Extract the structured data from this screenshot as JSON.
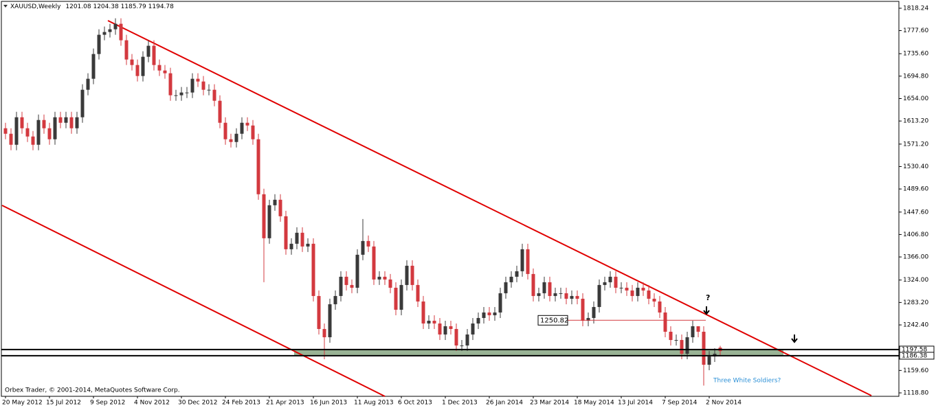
{
  "chart_data": {
    "type": "candlestick",
    "symbol": "XAUUSD,Weekly",
    "footer": "Orbex Trader, © 2001-2014, MetaQuotes Software Corp.",
    "annotations": [
      "?",
      "Three White Soldiers?"
    ],
    "categories": [
      "20 May 2012",
      null,
      null,
      null,
      null,
      null,
      null,
      null,
      "15 Jul 2012",
      null,
      null,
      null,
      null,
      null,
      null,
      null,
      "9 Sep 2012",
      null,
      null,
      null,
      null,
      null,
      null,
      null,
      "4 Nov 2012",
      null,
      null,
      null,
      null,
      null,
      null,
      null,
      "30 Dec 2012",
      null,
      null,
      null,
      null,
      null,
      null,
      null,
      "24 Feb 2013",
      null,
      null,
      null,
      null,
      null,
      null,
      null,
      "21 Apr 2013",
      null,
      null,
      null,
      null,
      null,
      null,
      null,
      "16 Jun 2013",
      null,
      null,
      null,
      null,
      null,
      null,
      null,
      "11 Aug 2013",
      null,
      null,
      null,
      null,
      null,
      null,
      null,
      "6 Oct 2013",
      null,
      null,
      null,
      null,
      null,
      null,
      null,
      "1 Dec 2013",
      null,
      null,
      null,
      null,
      null,
      null,
      null,
      "26 Jan 2014",
      null,
      null,
      null,
      null,
      null,
      null,
      null,
      "23 Mar 2014",
      null,
      null,
      null,
      null,
      null,
      null,
      null,
      "18 May 2014",
      null,
      null,
      null,
      null,
      null,
      null,
      null,
      "13 Jul 2014",
      null,
      null,
      null,
      null,
      null,
      null,
      null,
      "7 Sep 2014",
      null,
      null,
      null,
      null,
      null,
      null,
      null,
      "2 Nov 2014",
      null,
      null
    ],
    "open": [
      1600,
      1590,
      1570,
      1620,
      1600,
      1585,
      1570,
      1615,
      1600,
      1580,
      1620,
      1610,
      1620,
      1600,
      1620,
      1670,
      1690,
      1735,
      1770,
      1775,
      1780,
      1790,
      1760,
      1725,
      1715,
      1695,
      1730,
      1750,
      1715,
      1705,
      1700,
      1660,
      1660,
      1665,
      1665,
      1690,
      1685,
      1670,
      1670,
      1650,
      1610,
      1580,
      1575,
      1590,
      1610,
      1605,
      1580,
      1480,
      1400,
      1460,
      1470,
      1440,
      1380,
      1390,
      1410,
      1385,
      1390,
      1295,
      1235,
      1220,
      1280,
      1295,
      1330,
      1315,
      1310,
      1370,
      1395,
      1385,
      1325,
      1330,
      1325,
      1310,
      1270,
      1315,
      1350,
      1315,
      1285,
      1245,
      1250,
      1245,
      1225,
      1240,
      1235,
      1205,
      1205,
      1225,
      1245,
      1255,
      1265,
      1260,
      1265,
      1300,
      1320,
      1330,
      1340,
      1380,
      1335,
      1295,
      1300,
      1320,
      1295,
      1300,
      1300,
      1290,
      1295,
      1290,
      1250,
      1255,
      1275,
      1315,
      1320,
      1330,
      1310,
      1310,
      1305,
      1295,
      1310,
      1305,
      1290,
      1285,
      1265,
      1230,
      1215,
      1215,
      1190,
      1220,
      1240,
      1230,
      1170,
      1185,
      1201.08
    ],
    "high": [
      1610,
      1600,
      1630,
      1630,
      1610,
      1595,
      1625,
      1625,
      1610,
      1630,
      1630,
      1630,
      1630,
      1630,
      1680,
      1700,
      1745,
      1780,
      1785,
      1790,
      1800,
      1800,
      1770,
      1735,
      1725,
      1740,
      1760,
      1760,
      1725,
      1715,
      1710,
      1670,
      1675,
      1675,
      1700,
      1700,
      1695,
      1680,
      1680,
      1660,
      1620,
      1590,
      1600,
      1620,
      1620,
      1615,
      1590,
      1490,
      1470,
      1480,
      1480,
      1450,
      1400,
      1420,
      1420,
      1400,
      1400,
      1305,
      1245,
      1290,
      1305,
      1340,
      1340,
      1325,
      1380,
      1435,
      1405,
      1395,
      1340,
      1340,
      1335,
      1320,
      1325,
      1360,
      1360,
      1325,
      1295,
      1260,
      1260,
      1255,
      1250,
      1250,
      1245,
      1215,
      1235,
      1255,
      1265,
      1275,
      1275,
      1275,
      1310,
      1330,
      1340,
      1350,
      1390,
      1390,
      1345,
      1310,
      1330,
      1330,
      1310,
      1310,
      1310,
      1305,
      1305,
      1300,
      1265,
      1285,
      1325,
      1330,
      1340,
      1340,
      1320,
      1320,
      1315,
      1320,
      1320,
      1315,
      1300,
      1295,
      1275,
      1240,
      1225,
      1225,
      1230,
      1250,
      1240,
      1240,
      1195,
      1200,
      1204.38
    ],
    "low": [
      1580,
      1560,
      1560,
      1590,
      1575,
      1560,
      1560,
      1590,
      1570,
      1570,
      1600,
      1600,
      1590,
      1590,
      1610,
      1660,
      1680,
      1725,
      1760,
      1765,
      1770,
      1750,
      1715,
      1705,
      1685,
      1685,
      1720,
      1705,
      1695,
      1690,
      1650,
      1650,
      1650,
      1655,
      1655,
      1675,
      1660,
      1660,
      1640,
      1600,
      1570,
      1565,
      1565,
      1580,
      1595,
      1570,
      1470,
      1320,
      1390,
      1450,
      1430,
      1370,
      1370,
      1380,
      1375,
      1375,
      1285,
      1225,
      1180,
      1210,
      1270,
      1285,
      1305,
      1300,
      1300,
      1360,
      1375,
      1315,
      1315,
      1315,
      1300,
      1260,
      1260,
      1305,
      1305,
      1275,
      1235,
      1235,
      1235,
      1215,
      1215,
      1225,
      1195,
      1195,
      1195,
      1215,
      1235,
      1245,
      1250,
      1250,
      1255,
      1290,
      1310,
      1320,
      1330,
      1325,
      1285,
      1285,
      1290,
      1285,
      1285,
      1290,
      1280,
      1280,
      1280,
      1240,
      1240,
      1245,
      1265,
      1305,
      1310,
      1300,
      1300,
      1295,
      1285,
      1285,
      1295,
      1280,
      1275,
      1255,
      1220,
      1205,
      1205,
      1180,
      1180,
      1210,
      1220,
      1132,
      1160,
      1175,
      1185.79
    ],
    "close": [
      1590,
      1570,
      1620,
      1600,
      1585,
      1570,
      1615,
      1600,
      1580,
      1620,
      1610,
      1620,
      1600,
      1620,
      1670,
      1690,
      1735,
      1770,
      1775,
      1780,
      1790,
      1760,
      1725,
      1715,
      1695,
      1730,
      1750,
      1715,
      1705,
      1700,
      1660,
      1660,
      1665,
      1665,
      1690,
      1685,
      1670,
      1670,
      1650,
      1610,
      1580,
      1575,
      1590,
      1610,
      1605,
      1580,
      1480,
      1400,
      1460,
      1470,
      1440,
      1380,
      1390,
      1410,
      1385,
      1390,
      1295,
      1235,
      1220,
      1280,
      1295,
      1330,
      1315,
      1310,
      1370,
      1395,
      1385,
      1325,
      1330,
      1325,
      1310,
      1270,
      1315,
      1350,
      1315,
      1285,
      1245,
      1250,
      1245,
      1225,
      1240,
      1235,
      1205,
      1205,
      1225,
      1245,
      1255,
      1265,
      1260,
      1265,
      1300,
      1320,
      1330,
      1340,
      1380,
      1335,
      1295,
      1300,
      1320,
      1295,
      1300,
      1300,
      1290,
      1295,
      1290,
      1250,
      1255,
      1275,
      1315,
      1320,
      1330,
      1310,
      1310,
      1305,
      1295,
      1310,
      1305,
      1290,
      1285,
      1265,
      1230,
      1215,
      1215,
      1190,
      1220,
      1240,
      1230,
      1170,
      1185,
      1190,
      1194.78
    ],
    "bull_color": "#3a3a3a",
    "bear_color": "#d3393f",
    "hlines": [
      1197.58,
      1186.38
    ],
    "level": 1250.82,
    "ylim": [
      1112.56,
      1830.73
    ],
    "yticks": [
      1818.24,
      {
        "value": 1777.6,
        "label": "1777.60"
      },
      {
        "value": 1735.6,
        "label": "1735.60"
      },
      {
        "value": 1694.8,
        "label": "1694.80"
      },
      {
        "value": 1654,
        "label": "1654.00"
      },
      {
        "value": 1613.2,
        "label": "1613.20"
      },
      {
        "value": 1571.2,
        "label": "1571.20"
      },
      {
        "value": 1530.4,
        "label": "1530.40"
      },
      {
        "value": 1489.6,
        "label": "1489.60"
      },
      {
        "value": 1447.6,
        "label": "1447.60"
      },
      {
        "value": 1406.8,
        "label": "1406.80"
      },
      {
        "value": 1366,
        "label": "1366.00"
      },
      {
        "value": 1324,
        "label": "1324.00"
      },
      {
        "value": 1283.2,
        "label": "1283.20"
      },
      {
        "value": 1242.4,
        "label": "1242.40"
      },
      {
        "value": 1159.6,
        "label": "1159.60"
      },
      {
        "value": 1118.8,
        "label": "1118.80"
      }
    ]
  }
}
